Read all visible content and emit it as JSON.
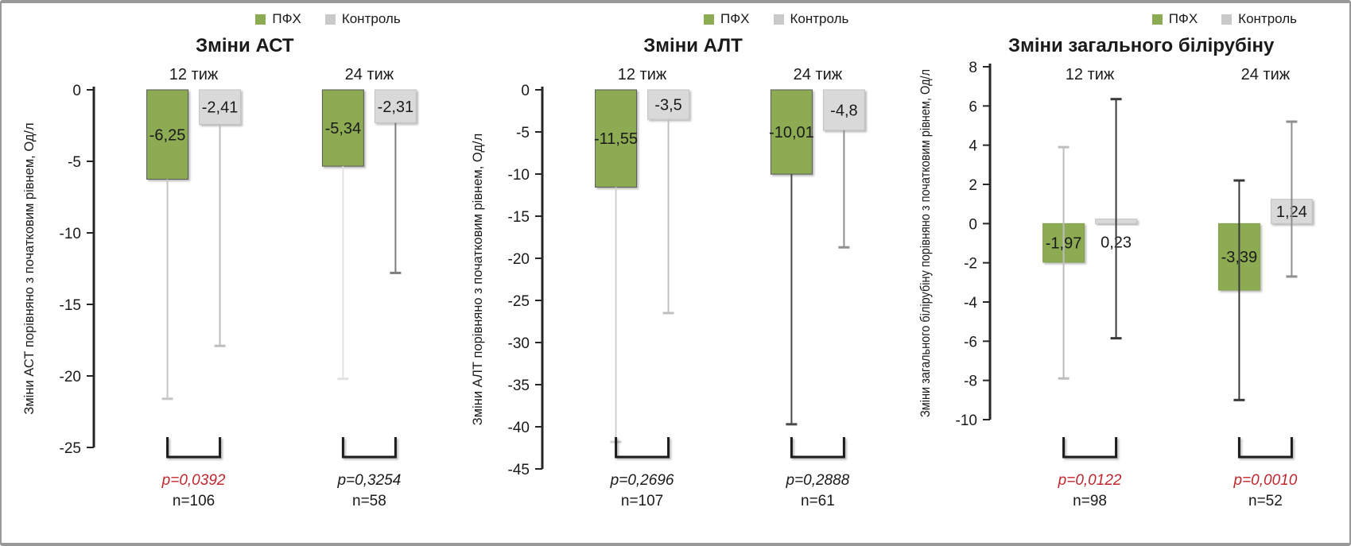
{
  "figure": {
    "background": "#ffffff",
    "border_color": "#999999",
    "text_color": "#1a1a1a",
    "accent_red": "#c1272d",
    "accent_green": "#8cab52"
  },
  "legend": {
    "items": [
      {
        "label": "ПФХ",
        "color": "#8cab52"
      },
      {
        "label": "Контроль",
        "color": "#c9c9c9"
      }
    ]
  },
  "chart_data": [
    {
      "type": "bar",
      "title": "Зміни АСТ",
      "ylabel": "Зміни АСТ порівняно з початковим рівнем, Од/л",
      "ylim": [
        -25,
        0
      ],
      "ytick_step": 5,
      "grid": false,
      "legend_position": "top-right",
      "categories": [
        "12 тиж",
        "24 тиж"
      ],
      "zero_line": {
        "color": "#7f7f7f",
        "width": 4
      },
      "series": [
        {
          "name": "ПФХ",
          "color": "#8cab52",
          "border_color": "#595959",
          "values": [
            -6.25,
            -5.34
          ],
          "labels": [
            "-6,25",
            "-5,34"
          ],
          "error_bars": [
            {
              "high": null,
              "low": -21.6,
              "color": "#c6c6c6"
            },
            {
              "high": null,
              "low": -20.2,
              "color": "#e2e2e2"
            }
          ]
        },
        {
          "name": "Контроль",
          "color": "#d9d9d9",
          "border_color": "#c2c2c2",
          "values": [
            -2.41,
            -2.31
          ],
          "labels": [
            "-2,41",
            "-2,31"
          ],
          "error_bars": [
            {
              "high": null,
              "low": -17.9,
              "color": "#bdbdbd"
            },
            {
              "high": null,
              "low": -12.8,
              "color": "#7d7d7d"
            }
          ]
        }
      ],
      "comparisons": [
        {
          "p": "p=0,0392",
          "p_color": "#c1272d",
          "n": "n=106"
        },
        {
          "p": "p=0,3254",
          "p_color": "#1a1a1a",
          "n": "n=58"
        }
      ]
    },
    {
      "type": "bar",
      "title": "Зміни АЛТ",
      "ylabel": "Зміни АЛТ порівняно з початковим рівнем, Од/л",
      "ylim": [
        -45,
        0
      ],
      "ytick_step": 5,
      "grid": false,
      "legend_position": "top-right",
      "categories": [
        "12 тиж",
        "24 тиж"
      ],
      "zero_line": {
        "color": "#4a4a4a",
        "width": 3.5
      },
      "series": [
        {
          "name": "ПФХ",
          "color": "#8cab52",
          "border_color": "#595959",
          "values": [
            -11.55,
            -10.01
          ],
          "labels": [
            "-11,55",
            "-10,01"
          ],
          "error_bars": [
            {
              "high": null,
              "low": -41.8,
              "color": "#d0d0d0"
            },
            {
              "high": null,
              "low": -39.7,
              "color": "#4a4a4a"
            }
          ]
        },
        {
          "name": "Контроль",
          "color": "#d9d9d9",
          "border_color": "#c2c2c2",
          "values": [
            -3.5,
            -4.8
          ],
          "labels": [
            "-3,5",
            "-4,8"
          ],
          "error_bars": [
            {
              "high": null,
              "low": -26.5,
              "color": "#c0c0c0"
            },
            {
              "high": null,
              "low": -18.7,
              "color": "#8f8f8f"
            }
          ]
        }
      ],
      "comparisons": [
        {
          "p": "p=0,2696",
          "p_color": "#1a1a1a",
          "n": "n=107"
        },
        {
          "p": "p=0,2888",
          "p_color": "#1a1a1a",
          "n": "n=61"
        }
      ]
    },
    {
      "type": "bar",
      "title": "Зміни загального білірубіну",
      "ylabel": "Зміни загального білірубіну порівняно з початковим рівнем, Од/л",
      "ylim": [
        -10,
        8
      ],
      "ytick_step": 2,
      "grid": false,
      "legend_position": "top-right",
      "categories": [
        "12 тиж",
        "24 тиж"
      ],
      "zero_line": {
        "color": "#1a1a1a",
        "width": 2.5
      },
      "series": [
        {
          "name": "ПФХ",
          "color": "#8cab52",
          "border_color": "#85a04e",
          "values": [
            -1.97,
            -3.39
          ],
          "labels": [
            "-1,97",
            "-3,39"
          ],
          "error_bars": [
            {
              "high": 3.9,
              "low": -7.9,
              "color": "#bdbdbd"
            },
            {
              "high": 2.2,
              "low": -9.0,
              "color": "#3a3a3a"
            }
          ]
        },
        {
          "name": "Контроль",
          "color": "#d9d9d9",
          "border_color": "#c2c2c2",
          "values": [
            0.23,
            1.24
          ],
          "labels": [
            "0,23",
            "1,24"
          ],
          "error_bars": [
            {
              "high": 6.35,
              "low": -5.85,
              "color": "#3a3a3a"
            },
            {
              "high": 5.2,
              "low": -2.7,
              "color": "#8f8f8f"
            }
          ]
        }
      ],
      "comparisons": [
        {
          "p": "p=0,0122",
          "p_color": "#c1272d",
          "n": "n=98"
        },
        {
          "p": "p=0,0010",
          "p_color": "#c1272d",
          "n": "n=52"
        }
      ]
    }
  ]
}
